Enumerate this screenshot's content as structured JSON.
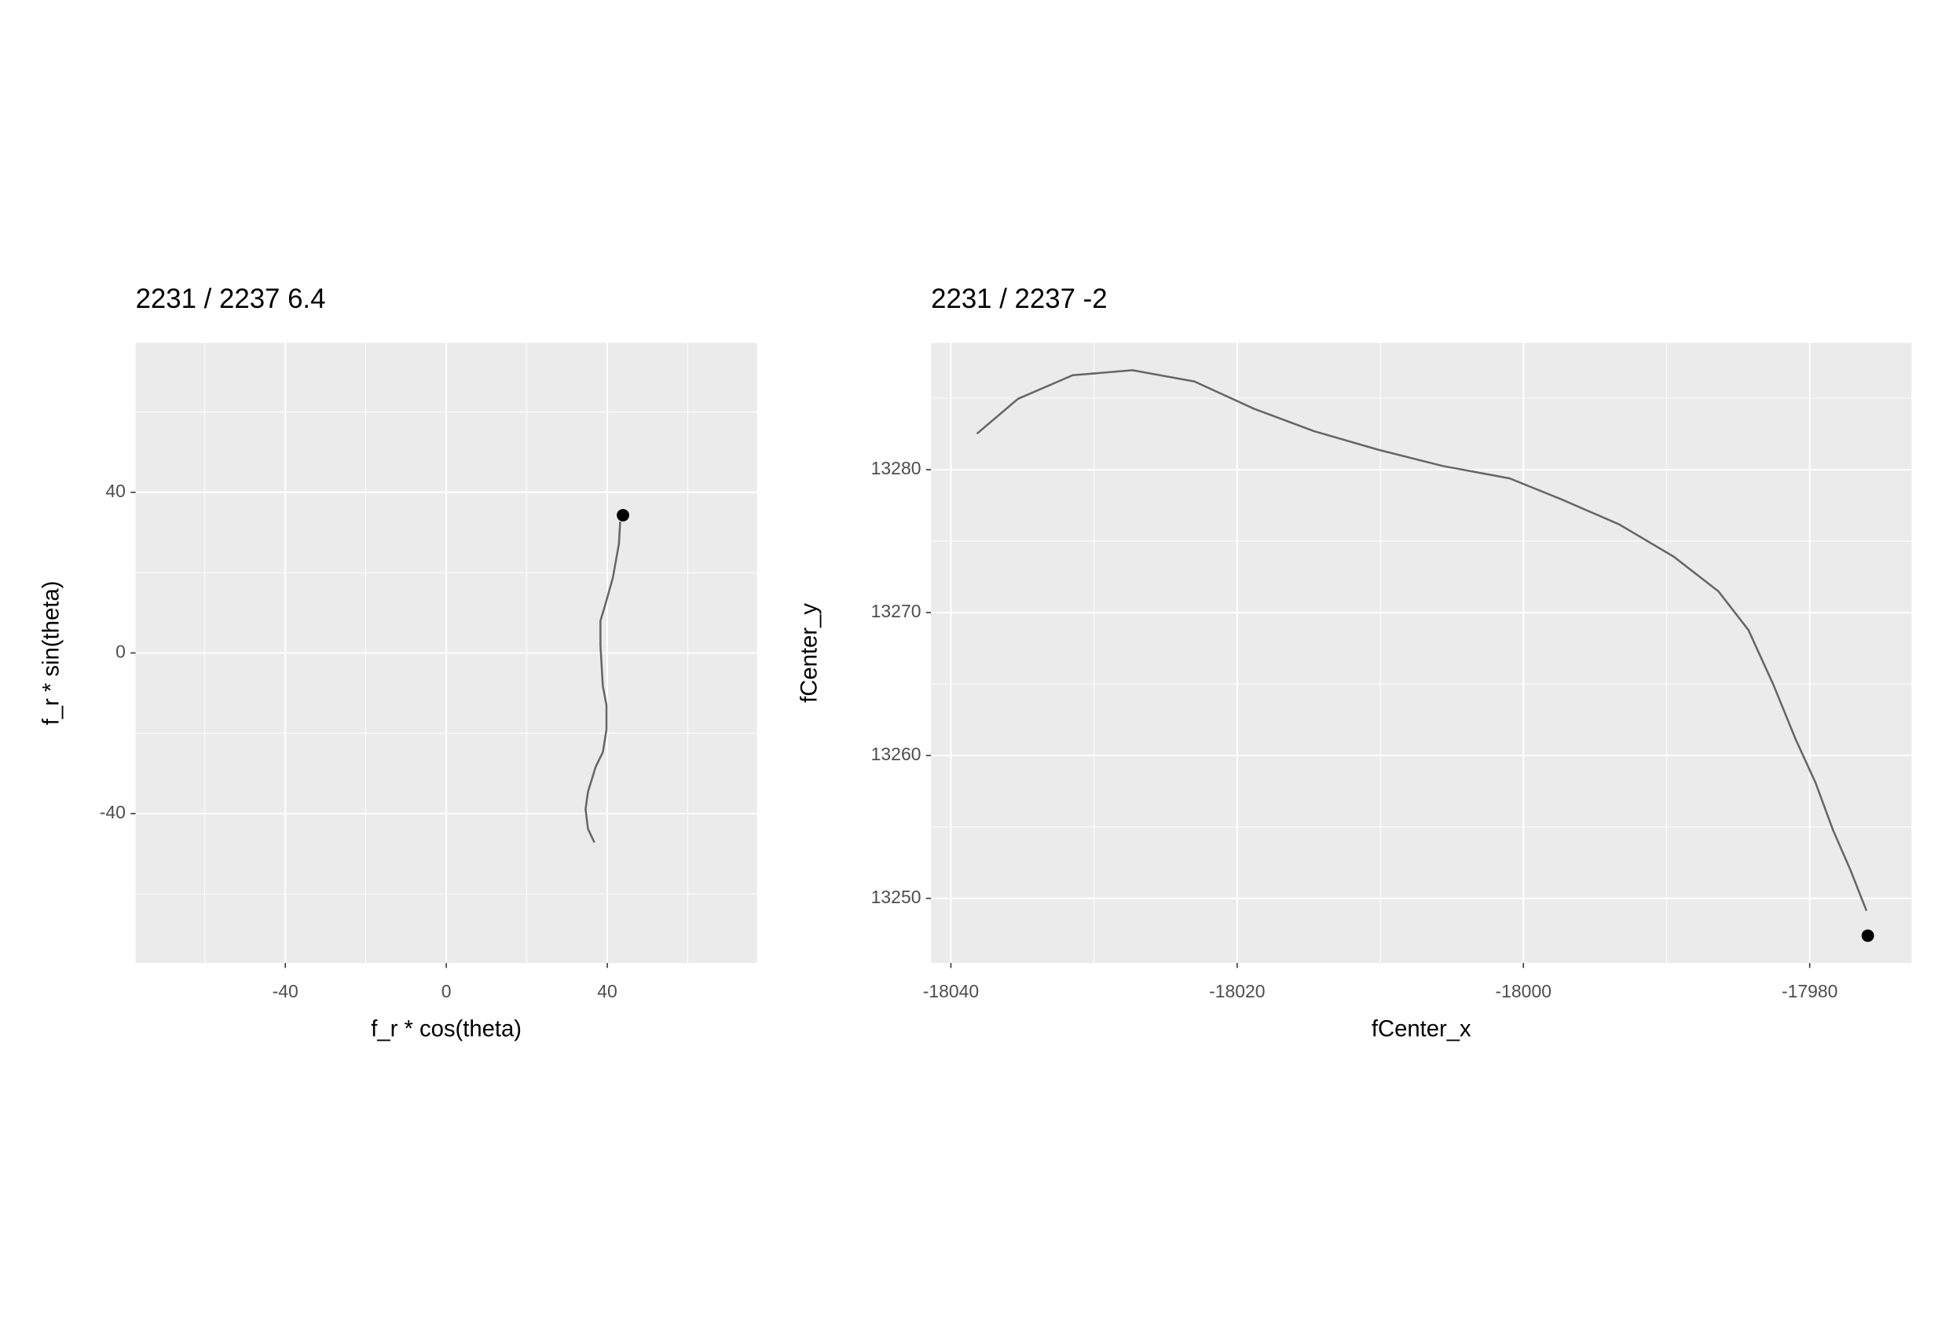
{
  "chart_data": [
    {
      "type": "line",
      "title": "2231 / 2237 6.4",
      "x_label": "f_r * cos(theta)",
      "y_label": "f_r * sin(theta)",
      "x": [
        36.8,
        35.2,
        34.6,
        35.2,
        37.1,
        38.9,
        39.8,
        39.8,
        38.9,
        38.3,
        38.3,
        39.5,
        41.4,
        42.9,
        43.2
      ],
      "values": [
        -47.2,
        -43.8,
        -38.9,
        -34.6,
        -28.4,
        -24.7,
        -19.1,
        -13,
        -8.3,
        1.9,
        8,
        12,
        18.8,
        27.2,
        32.7
      ],
      "color": "#666666",
      "point": {
        "x": 43.9,
        "y": 34.3
      },
      "point_color": "#000000",
      "xlim": [
        -77.2,
        77.2
      ],
      "ylim": [
        -77.2,
        77.2
      ],
      "xticks": [
        -40,
        0,
        40
      ],
      "yticks": [
        -40,
        0,
        40
      ],
      "grid": true
    },
    {
      "type": "line",
      "title": "2231 / 2237 -2",
      "x_label": "fCenter_x",
      "y_label": "fCenter_y",
      "x": [
        -18038.18,
        -18035.31,
        -18031.49,
        -18027.32,
        -18022.98,
        -18018.81,
        -18014.64,
        -18010.12,
        -18005.64,
        -18000.96,
        -17997.31,
        -17993.31,
        -17989.49,
        -17986.37,
        -17984.28,
        -17982.54,
        -17980.98,
        -17979.59,
        -17978.37,
        -17977.16,
        -17976.03
      ],
      "values": [
        13282.52,
        13284.96,
        13286.61,
        13286.96,
        13286.17,
        13284.26,
        13282.7,
        13281.39,
        13280.26,
        13279.39,
        13277.91,
        13276.17,
        13273.91,
        13271.48,
        13268.78,
        13264.96,
        13261.13,
        13258.09,
        13254.78,
        13252,
        13249.13
      ],
      "color": "#666666",
      "point": {
        "x": -17975.94,
        "y": 13247.39
      },
      "point_color": "#000000",
      "xlim": [
        -18041.39,
        -17972.88
      ],
      "ylim": [
        13245.48,
        13288.87
      ],
      "xticks": [
        -18040,
        -18020,
        -18000,
        -17980
      ],
      "yticks": [
        13250,
        13260,
        13270,
        13280
      ],
      "grid": true
    }
  ]
}
